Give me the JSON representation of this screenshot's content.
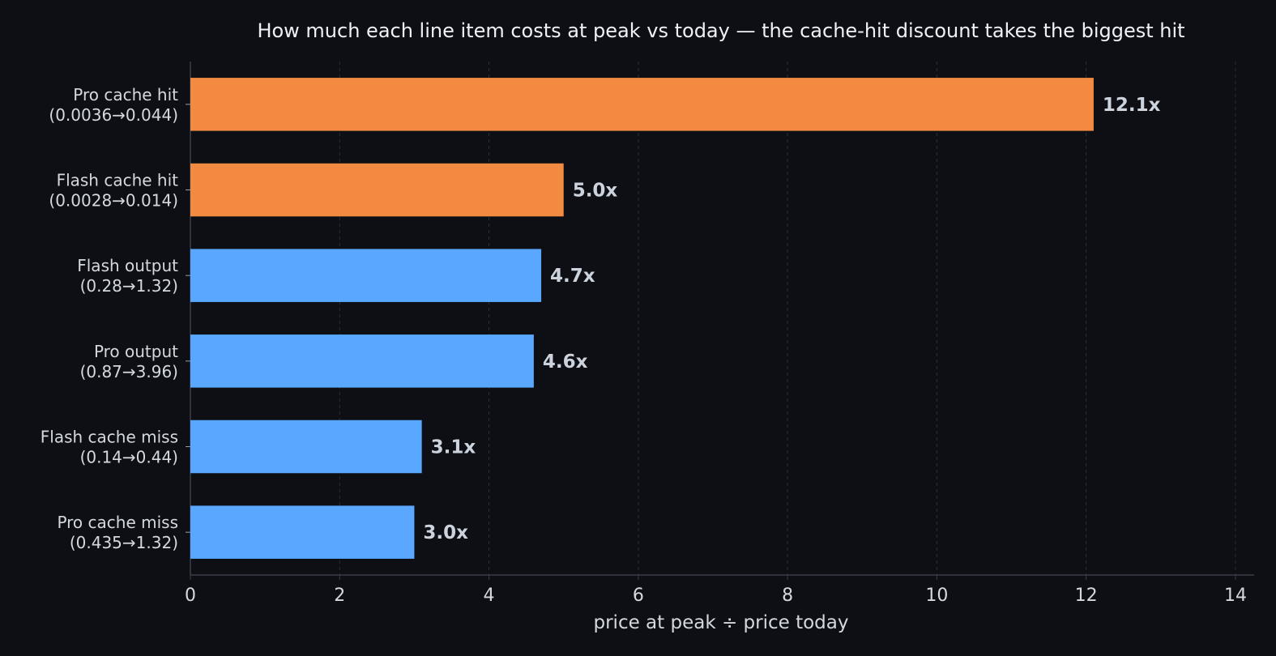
{
  "chart_data": {
    "type": "bar",
    "orientation": "horizontal",
    "title": "How much each line item costs at peak vs today — the cache-hit discount takes the biggest hit",
    "xlabel": "price at peak ÷ price today",
    "ylabel": "",
    "xlim": [
      0,
      14.25
    ],
    "xticks": [
      0,
      2,
      4,
      6,
      8,
      10,
      12,
      14
    ],
    "grid": "vertical-dashed",
    "categories": [
      [
        "Pro cache hit",
        "(0.0036→0.044)"
      ],
      [
        "Flash cache hit",
        "(0.0028→0.014)"
      ],
      [
        "Flash output",
        "(0.28→1.32)"
      ],
      [
        "Pro output",
        "(0.87→3.96)"
      ],
      [
        "Flash cache miss",
        "(0.14→0.44)"
      ],
      [
        "Pro cache miss",
        "(0.435→1.32)"
      ]
    ],
    "values": [
      12.1,
      5.0,
      4.7,
      4.6,
      3.1,
      3.0
    ],
    "value_labels": [
      "12.1x",
      "5.0x",
      "4.7x",
      "4.6x",
      "3.1x",
      "3.0x"
    ],
    "highlight": [
      true,
      true,
      false,
      false,
      false,
      false
    ],
    "colors": {
      "highlight": "#f28b41",
      "default": "#59a7ff",
      "background": "#0d0f15",
      "grid": "#2a2e38",
      "axis": "#3a3f4a"
    }
  }
}
